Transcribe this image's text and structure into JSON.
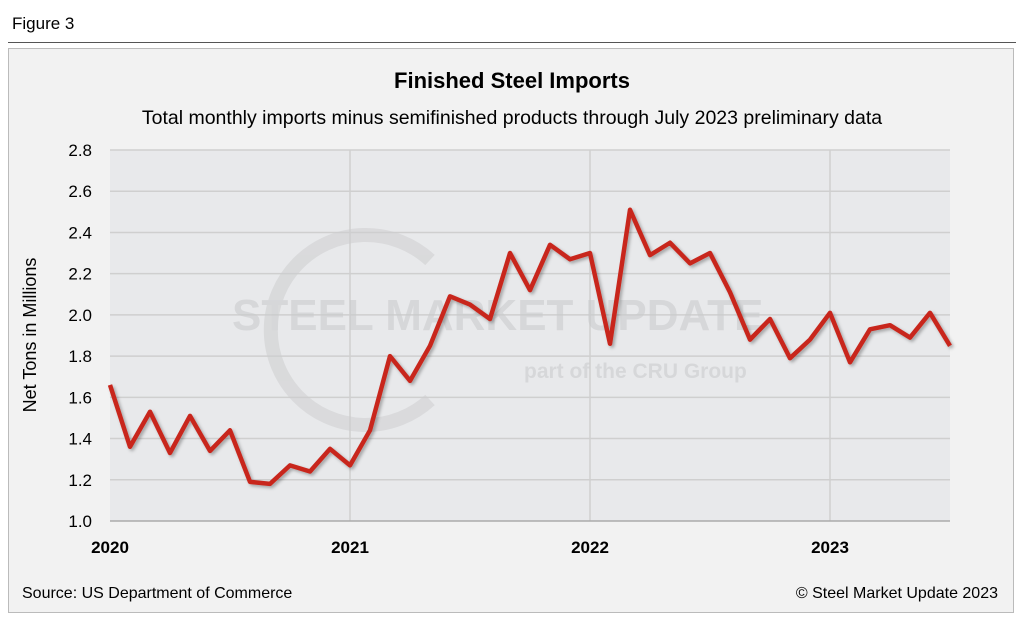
{
  "figure_label": "Figure 3",
  "source": "Source: US Department of Commerce",
  "copyright": "© Steel Market Update 2023",
  "watermark": {
    "brand": "STEEL MARKET UPDATE",
    "sub": "part of the CRU Group"
  },
  "colors": {
    "line": "#c8281e",
    "plot_bg": "#e8e9eb",
    "grid": "#cfcfcf"
  },
  "chart_data": {
    "type": "line",
    "title": "Finished Steel Imports",
    "subtitle": "Total monthly imports minus semifinished products through July 2023 preliminary data",
    "xlabel": "",
    "ylabel": "Net Tons in Millions",
    "ylim": [
      1.0,
      2.8
    ],
    "yticks": [
      "1.0",
      "1.2",
      "1.4",
      "1.6",
      "1.8",
      "2.0",
      "2.2",
      "2.4",
      "2.6",
      "2.8"
    ],
    "xticks": [
      "2020",
      "2021",
      "2022",
      "2023"
    ],
    "x_start": "2020-01",
    "x_end": "2023-07",
    "series": [
      {
        "name": "Finished steel imports",
        "values": [
          1.66,
          1.36,
          1.53,
          1.33,
          1.51,
          1.34,
          1.44,
          1.19,
          1.18,
          1.27,
          1.24,
          1.35,
          1.27,
          1.44,
          1.8,
          1.68,
          1.85,
          2.09,
          2.05,
          1.98,
          2.3,
          2.12,
          2.34,
          2.27,
          2.3,
          1.86,
          2.51,
          2.29,
          2.35,
          2.25,
          2.3,
          2.11,
          1.88,
          1.98,
          1.79,
          1.88,
          2.01,
          1.77,
          1.93,
          1.95,
          1.89,
          2.01,
          1.85
        ]
      }
    ],
    "grid": true
  }
}
